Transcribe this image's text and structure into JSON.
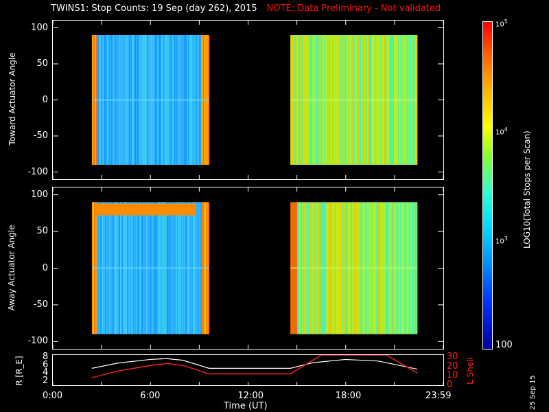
{
  "title": {
    "main": "TWINS1: Stop Counts: 19 Sep (day 262), 2015",
    "note": "NOTE: Data Preliminary - Not validated"
  },
  "panels": [
    {
      "ylabel": "Toward Actuator Angle",
      "yticks": [
        "100",
        "50",
        "0",
        "-50",
        "-100"
      ]
    },
    {
      "ylabel": "Away Actuator Angle",
      "yticks": [
        "100",
        "50",
        "0",
        "-50",
        "-100"
      ]
    }
  ],
  "ephem": {
    "ylabel": "R [R_E]",
    "ylabel_right": "L Shell",
    "yticks_left": [
      "8",
      "6",
      "4",
      "2"
    ],
    "yticks_right": [
      "30",
      "20",
      "10",
      "0"
    ],
    "xticks": [
      "0:00",
      "6:00",
      "12:00",
      "18:00",
      "23:59"
    ],
    "xlabel": "Time (UT)"
  },
  "colorbar": {
    "title": "LOG10(Total Stops per Scan)",
    "labels": [
      "10^5",
      "10^4",
      "10^3",
      "100"
    ],
    "max": "10",
    "max_exp": "5",
    "mid_hi": "10",
    "mid_hi_exp": "4",
    "mid_lo": "10",
    "mid_lo_exp": "3",
    "min": "100"
  },
  "datestamp": "25 Sep 15",
  "colors": {
    "note": "#ff1010",
    "ephem_r": "#ffffff",
    "ephem_l": "#ff2020",
    "background": "#000000"
  },
  "chart_data": [
    {
      "type": "heatmap",
      "title": "TWINS1: Stop Counts: 19 Sep (day 262), 2015",
      "ylabel": "Toward Actuator Angle",
      "ylim": [
        -110,
        110
      ],
      "xlim_hours": [
        0,
        24
      ],
      "coverage_hours": [
        [
          2.4,
          9.6
        ],
        [
          14.6,
          22.4
        ]
      ],
      "colorscale": "log10",
      "zlim": [
        100,
        100000
      ]
    },
    {
      "type": "heatmap",
      "ylabel": "Away Actuator Angle",
      "ylim": [
        -110,
        110
      ],
      "xlim_hours": [
        0,
        24
      ],
      "coverage_hours": [
        [
          2.4,
          9.6
        ],
        [
          14.6,
          22.4
        ]
      ],
      "colorscale": "log10",
      "zlim": [
        100,
        100000
      ]
    },
    {
      "type": "line",
      "xlabel": "Time (UT)",
      "ylabel": "R [R_E]",
      "ylabel_right": "L Shell",
      "xlim": [
        0,
        24
      ],
      "ylim": [
        1,
        8.5
      ],
      "ylim_right": [
        0,
        32
      ],
      "series": [
        {
          "name": "R [R_E]",
          "x": [
            2.4,
            4,
            6,
            7,
            8,
            9.6,
            14.6,
            16,
            18,
            20,
            22.4
          ],
          "y": [
            5.2,
            6.5,
            7.4,
            7.6,
            7.2,
            5.2,
            5.2,
            6.6,
            7.4,
            7.0,
            5.0
          ]
        },
        {
          "name": "L Shell",
          "axis": "right",
          "x": [
            2.4,
            4,
            6,
            7,
            8,
            9.6,
            14.6,
            16.5,
            20.5,
            22.4
          ],
          "y": [
            8,
            15,
            21,
            23,
            21,
            12,
            12,
            32,
            32,
            13
          ]
        }
      ]
    }
  ]
}
